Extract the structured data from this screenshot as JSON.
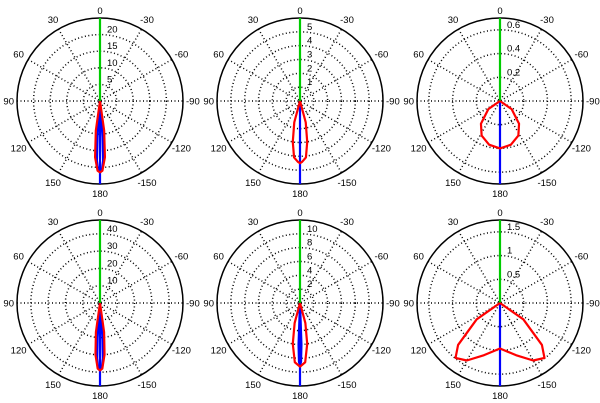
{
  "chart_data": [
    {
      "type": "polar",
      "title": "",
      "radial_ticks": [
        "5",
        "10",
        "15",
        "20"
      ],
      "rmax": 25,
      "angle_labels": [
        "0",
        "30",
        "60",
        "90",
        "120",
        "150",
        "180",
        "-150",
        "-120",
        "-90",
        "-60",
        "-30"
      ],
      "series": [
        {
          "color": "#00cc00",
          "points": [
            {
              "theta": 0,
              "r": 25
            }
          ]
        },
        {
          "color": "#0000ff",
          "points": [
            {
              "theta": 180,
              "r": 25
            }
          ]
        },
        {
          "color": "#0000ff",
          "points": [
            {
              "theta": 180,
              "r": 0
            },
            {
              "theta": 176,
              "r": 11
            },
            {
              "theta": 177,
              "r": 18
            },
            {
              "theta": 178.5,
              "r": 21
            },
            {
              "theta": 180,
              "r": 21.5
            },
            {
              "theta": -178.5,
              "r": 21
            },
            {
              "theta": -177,
              "r": 18
            },
            {
              "theta": -176,
              "r": 11
            },
            {
              "theta": 180,
              "r": 0
            }
          ]
        },
        {
          "color": "#ff0000",
          "points": [
            {
              "theta": 180,
              "r": 0
            },
            {
              "theta": 172,
              "r": 9
            },
            {
              "theta": 175,
              "r": 17
            },
            {
              "theta": 178,
              "r": 21
            },
            {
              "theta": 180,
              "r": 21.5
            },
            {
              "theta": -178,
              "r": 21
            },
            {
              "theta": -175,
              "r": 17
            },
            {
              "theta": -172,
              "r": 9
            },
            {
              "theta": 180,
              "r": 0
            }
          ]
        }
      ]
    },
    {
      "type": "polar",
      "title": "",
      "radial_ticks": [
        "1",
        "2",
        "3",
        "4",
        "5"
      ],
      "rmax": 6,
      "angle_labels": [
        "0",
        "30",
        "60",
        "90",
        "120",
        "150",
        "180",
        "-150",
        "-120",
        "-90",
        "-60",
        "-30"
      ],
      "series": [
        {
          "color": "#00cc00",
          "points": [
            {
              "theta": 0,
              "r": 6
            }
          ]
        },
        {
          "color": "#0000ff",
          "points": [
            {
              "theta": 180,
              "r": 6
            }
          ]
        },
        {
          "color": "#ff0000",
          "points": [
            {
              "theta": 180,
              "r": 0
            },
            {
              "theta": 165,
              "r": 1.6
            },
            {
              "theta": 170,
              "r": 3
            },
            {
              "theta": 174,
              "r": 4.1
            },
            {
              "theta": 178,
              "r": 4.4
            },
            {
              "theta": 180,
              "r": 4.5
            },
            {
              "theta": -178,
              "r": 4.4
            },
            {
              "theta": -174,
              "r": 4.1
            },
            {
              "theta": -170,
              "r": 3
            },
            {
              "theta": -165,
              "r": 1.6
            },
            {
              "theta": 180,
              "r": 0
            }
          ]
        }
      ]
    },
    {
      "type": "polar",
      "title": "",
      "radial_ticks": [
        "0.2",
        "0.4",
        "0.6"
      ],
      "rmax": 0.7,
      "angle_labels": [
        "0",
        "30",
        "60",
        "90",
        "120",
        "150",
        "180",
        "-150",
        "-120",
        "-90",
        "-60",
        "-30"
      ],
      "series": [
        {
          "color": "#00cc00",
          "points": [
            {
              "theta": 0,
              "r": 0.7
            }
          ]
        },
        {
          "color": "#0000ff",
          "points": [
            {
              "theta": 180,
              "r": 0.7
            }
          ]
        },
        {
          "color": "#ff0000",
          "points": [
            {
              "theta": 180,
              "r": 0
            },
            {
              "theta": 125,
              "r": 0.12
            },
            {
              "theta": 140,
              "r": 0.25
            },
            {
              "theta": 152,
              "r": 0.33
            },
            {
              "theta": 166,
              "r": 0.38
            },
            {
              "theta": 180,
              "r": 0.4
            },
            {
              "theta": -166,
              "r": 0.38
            },
            {
              "theta": -152,
              "r": 0.33
            },
            {
              "theta": -140,
              "r": 0.25
            },
            {
              "theta": -125,
              "r": 0.12
            },
            {
              "theta": 180,
              "r": 0
            }
          ]
        }
      ]
    },
    {
      "type": "polar",
      "title": "",
      "radial_ticks": [
        "10",
        "20",
        "30",
        "40"
      ],
      "rmax": 48,
      "angle_labels": [
        "0",
        "30",
        "60",
        "90",
        "120",
        "150",
        "180",
        "-150",
        "-120",
        "-90",
        "-60",
        "-30"
      ],
      "series": [
        {
          "color": "#00cc00",
          "points": [
            {
              "theta": 0,
              "r": 48
            }
          ]
        },
        {
          "color": "#0000ff",
          "points": [
            {
              "theta": 180,
              "r": 48
            }
          ]
        },
        {
          "color": "#0000ff",
          "points": [
            {
              "theta": 180,
              "r": 0
            },
            {
              "theta": 176,
              "r": 20
            },
            {
              "theta": 177,
              "r": 32
            },
            {
              "theta": 178.5,
              "r": 38
            },
            {
              "theta": 180,
              "r": 39
            },
            {
              "theta": -178.5,
              "r": 38
            },
            {
              "theta": -177,
              "r": 32
            },
            {
              "theta": -176,
              "r": 20
            },
            {
              "theta": 180,
              "r": 0
            }
          ]
        },
        {
          "color": "#ff0000",
          "points": [
            {
              "theta": 180,
              "r": 0
            },
            {
              "theta": 172,
              "r": 17
            },
            {
              "theta": 175,
              "r": 30
            },
            {
              "theta": 178,
              "r": 38
            },
            {
              "theta": 180,
              "r": 39
            },
            {
              "theta": -178,
              "r": 38
            },
            {
              "theta": -175,
              "r": 30
            },
            {
              "theta": -172,
              "r": 17
            },
            {
              "theta": 180,
              "r": 0
            }
          ]
        }
      ]
    },
    {
      "type": "polar",
      "title": "",
      "radial_ticks": [
        "2",
        "4",
        "6",
        "8",
        "10"
      ],
      "rmax": 12,
      "angle_labels": [
        "0",
        "30",
        "60",
        "90",
        "120",
        "150",
        "180",
        "-150",
        "-120",
        "-90",
        "-60",
        "-30"
      ],
      "series": [
        {
          "color": "#00cc00",
          "points": [
            {
              "theta": 0,
              "r": 12
            }
          ]
        },
        {
          "color": "#0000ff",
          "points": [
            {
              "theta": 180,
              "r": 12
            }
          ]
        },
        {
          "color": "#0000ff",
          "points": [
            {
              "theta": 180,
              "r": 0
            },
            {
              "theta": 178,
              "r": 6
            },
            {
              "theta": 179,
              "r": 8.5
            },
            {
              "theta": 180,
              "r": 9
            },
            {
              "theta": -179,
              "r": 8.5
            },
            {
              "theta": -178,
              "r": 6
            },
            {
              "theta": 180,
              "r": 0
            }
          ]
        },
        {
          "color": "#ff0000",
          "points": [
            {
              "theta": 180,
              "r": 0
            },
            {
              "theta": 165,
              "r": 3
            },
            {
              "theta": 170,
              "r": 6
            },
            {
              "theta": 175,
              "r": 8.6
            },
            {
              "theta": 180,
              "r": 9.2
            },
            {
              "theta": -175,
              "r": 8.6
            },
            {
              "theta": -170,
              "r": 6
            },
            {
              "theta": -165,
              "r": 3
            },
            {
              "theta": 180,
              "r": 0
            }
          ]
        }
      ]
    },
    {
      "type": "polar",
      "title": "",
      "radial_ticks": [
        "0.5",
        "1",
        "1.5"
      ],
      "rmax": 1.75,
      "angle_labels": [
        "0",
        "30",
        "60",
        "90",
        "120",
        "150",
        "180",
        "-150",
        "-120",
        "-90",
        "-60",
        "-30"
      ],
      "series": [
        {
          "color": "#00cc00",
          "points": [
            {
              "theta": 0,
              "r": 1.75
            }
          ]
        },
        {
          "color": "#0000ff",
          "points": [
            {
              "theta": 180,
              "r": 1.75
            }
          ]
        },
        {
          "color": "#ff0000",
          "points": [
            {
              "theta": 180,
              "r": 0
            },
            {
              "theta": 125,
              "r": 0.6
            },
            {
              "theta": 135,
              "r": 1.25
            },
            {
              "theta": 141,
              "r": 1.49
            },
            {
              "theta": 150,
              "r": 1.4
            },
            {
              "theta": 163,
              "r": 1.15
            },
            {
              "theta": 180,
              "r": 0.96
            },
            {
              "theta": -163,
              "r": 1.15
            },
            {
              "theta": -150,
              "r": 1.4
            },
            {
              "theta": -141,
              "r": 1.49
            },
            {
              "theta": -135,
              "r": 1.25
            },
            {
              "theta": -125,
              "r": 0.6
            },
            {
              "theta": 180,
              "r": 0
            }
          ]
        }
      ]
    }
  ]
}
